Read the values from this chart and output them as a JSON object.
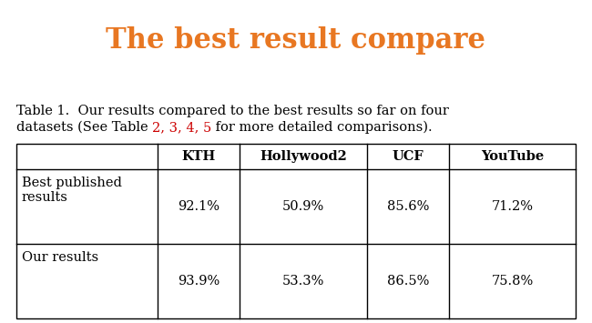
{
  "title": "The best result compare",
  "title_color": "#E87722",
  "title_fontsize": 22,
  "title_fontweight": "bold",
  "background_color": "#ffffff",
  "caption_line1": "Table 1.  Our results compared to the best results so far on four",
  "caption_line2_prefix": "datasets (See Table ",
  "caption_line2_numbers": "2, 3, 4, 5",
  "caption_line2_suffix": " for more detailed comparisons).",
  "caption_color": "#000000",
  "caption_red_color": "#cc0000",
  "caption_fontsize": 10.5,
  "col_headers": [
    "",
    "KTH",
    "Hollywood2",
    "UCF",
    "YouTube"
  ],
  "data": [
    [
      "Best published\nresults",
      "92.1%",
      "50.9%",
      "85.6%",
      "71.2%"
    ],
    [
      "Our results",
      "93.9%",
      "53.3%",
      "86.5%",
      "75.8%"
    ]
  ],
  "table_fontsize": 10.5,
  "table_header_fontweight": "bold"
}
